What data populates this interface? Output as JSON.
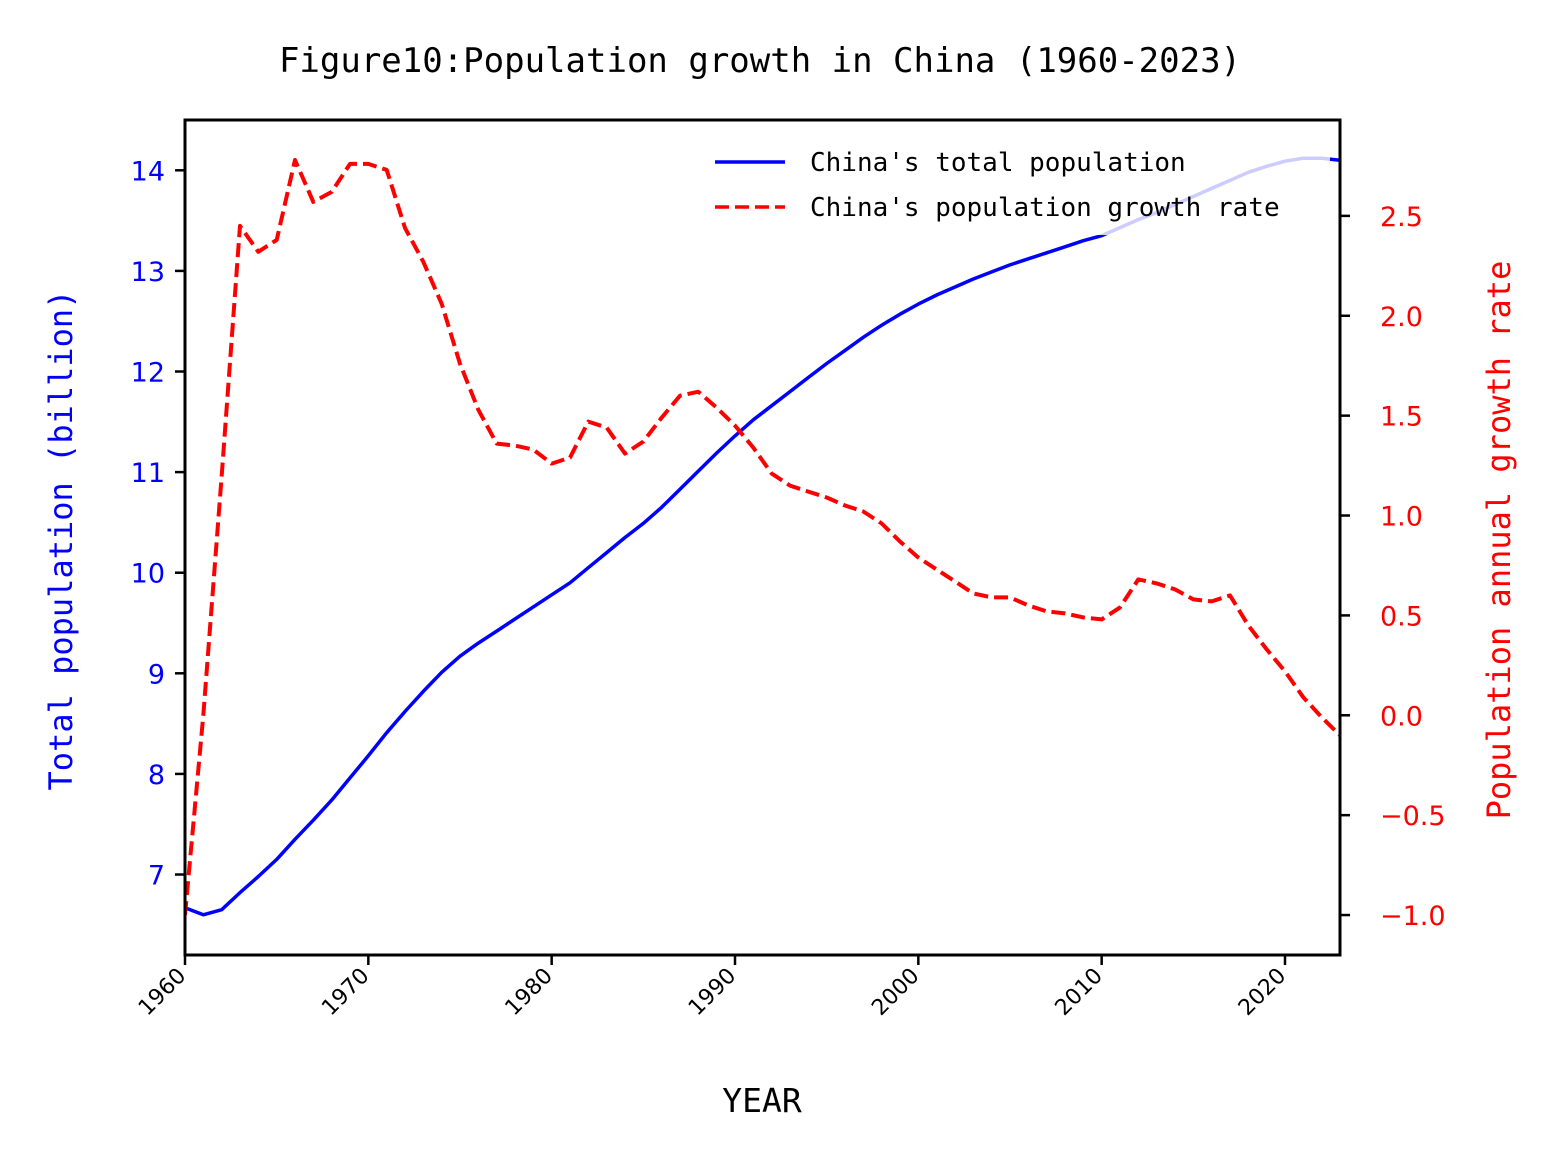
{
  "chart_data": {
    "type": "line",
    "title": "Figure10:Population growth in China (1960-2023)",
    "xlabel": "YEAR",
    "ylabel_left": "Total population (billion)",
    "ylabel_right": "Population annual growth rate",
    "xlim": [
      1960,
      2023
    ],
    "ylim_left": [
      6.2,
      14.5
    ],
    "ylim_right": [
      -1.2,
      2.98
    ],
    "x_ticks": [
      1960,
      1970,
      1980,
      1990,
      2000,
      2010,
      2020
    ],
    "y_ticks_left": [
      7,
      8,
      9,
      10,
      11,
      12,
      13,
      14
    ],
    "y_ticks_right": [
      "−1.0",
      "−0.5",
      "0.0",
      "0.5",
      "1.0",
      "1.5",
      "2.0",
      "2.5"
    ],
    "y_ticks_right_values": [
      -1.0,
      -0.5,
      0.0,
      0.5,
      1.0,
      1.5,
      2.0,
      2.5
    ],
    "grid": false,
    "legend_position": "top-right",
    "x": [
      1960,
      1961,
      1962,
      1963,
      1964,
      1965,
      1966,
      1967,
      1968,
      1969,
      1970,
      1971,
      1972,
      1973,
      1974,
      1975,
      1976,
      1977,
      1978,
      1979,
      1980,
      1981,
      1982,
      1983,
      1984,
      1985,
      1986,
      1987,
      1988,
      1989,
      1990,
      1991,
      1992,
      1993,
      1994,
      1995,
      1996,
      1997,
      1998,
      1999,
      2000,
      2001,
      2002,
      2003,
      2004,
      2005,
      2006,
      2007,
      2008,
      2009,
      2010,
      2011,
      2012,
      2013,
      2014,
      2015,
      2016,
      2017,
      2018,
      2019,
      2020,
      2021,
      2022,
      2023
    ],
    "series": [
      {
        "name": "China's total population",
        "axis": "left",
        "color": "#0000ff",
        "style": "solid",
        "values": [
          6.67,
          6.6,
          6.65,
          6.82,
          6.98,
          7.15,
          7.35,
          7.54,
          7.74,
          7.96,
          8.18,
          8.41,
          8.62,
          8.82,
          9.01,
          9.17,
          9.3,
          9.42,
          9.54,
          9.66,
          9.78,
          9.9,
          10.05,
          10.2,
          10.35,
          10.49,
          10.65,
          10.83,
          11.01,
          11.19,
          11.36,
          11.52,
          11.66,
          11.8,
          11.94,
          12.08,
          12.21,
          12.34,
          12.46,
          12.57,
          12.67,
          12.76,
          12.84,
          12.92,
          12.99,
          13.06,
          13.12,
          13.18,
          13.24,
          13.3,
          13.35,
          13.43,
          13.51,
          13.58,
          13.66,
          13.74,
          13.82,
          13.9,
          13.98,
          14.04,
          14.09,
          14.12,
          14.12,
          14.1
        ]
      },
      {
        "name": "China's population growth rate",
        "axis": "right",
        "color": "#ff0000",
        "style": "dashed",
        "values": [
          -1.0,
          0.0,
          1.2,
          2.45,
          2.32,
          2.38,
          2.78,
          2.57,
          2.62,
          2.76,
          2.76,
          2.73,
          2.44,
          2.27,
          2.06,
          1.76,
          1.53,
          1.36,
          1.35,
          1.33,
          1.26,
          1.29,
          1.47,
          1.44,
          1.31,
          1.37,
          1.49,
          1.6,
          1.62,
          1.54,
          1.45,
          1.34,
          1.21,
          1.15,
          1.12,
          1.09,
          1.05,
          1.02,
          0.96,
          0.87,
          0.79,
          0.73,
          0.67,
          0.61,
          0.59,
          0.59,
          0.55,
          0.52,
          0.51,
          0.49,
          0.48,
          0.54,
          0.68,
          0.66,
          0.63,
          0.58,
          0.57,
          0.6,
          0.45,
          0.33,
          0.22,
          0.09,
          -0.01,
          -0.1
        ]
      }
    ]
  }
}
